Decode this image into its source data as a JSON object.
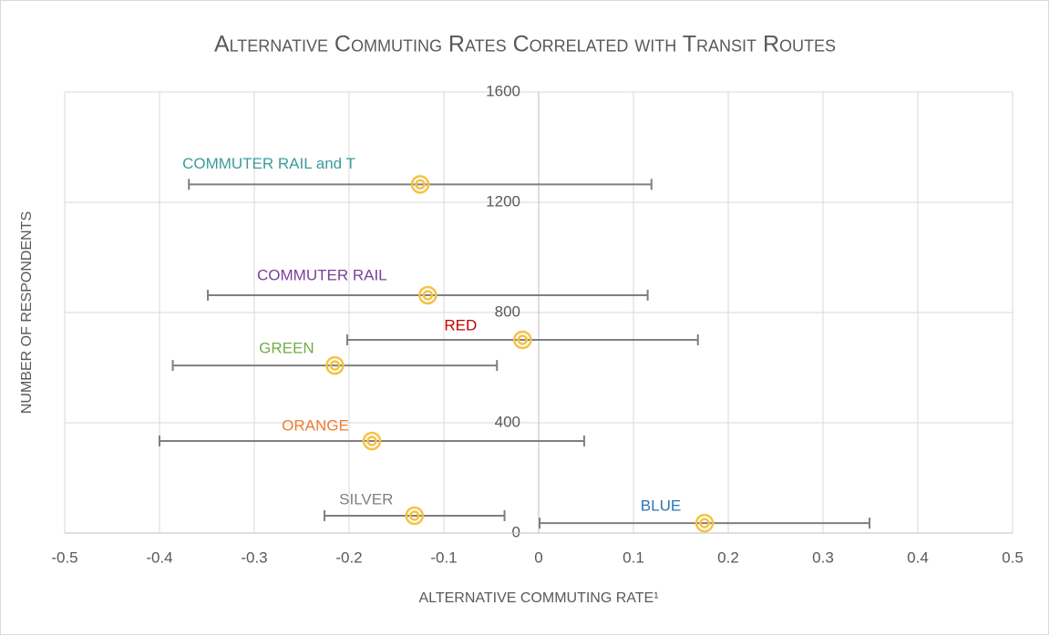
{
  "chart_data": {
    "type": "scatter",
    "title": "Alternative Commuting Rates Correlated with Transit Routes",
    "x_label": "ALTERNATIVE COMMUTING RATE¹",
    "y_label": "NUMBER OF RESPONDENTS",
    "xlim": [
      -0.5,
      0.5
    ],
    "xticks": [
      -0.5,
      -0.4,
      -0.3,
      -0.2,
      -0.1,
      0,
      0.1,
      0.2,
      0.3,
      0.4,
      0.5
    ],
    "ylim": [
      0,
      1600
    ],
    "yticks": [
      0,
      400,
      800,
      1200,
      1600
    ],
    "grid": true,
    "marker_color": "#f5c242",
    "series": [
      {
        "name": "COMMUTER RAIL and T",
        "color": "#3b9b9b",
        "x": -0.125,
        "y": 1265,
        "xerr": 0.244
      },
      {
        "name": "COMMUTER RAIL",
        "color": "#7b3f9a",
        "x": -0.117,
        "y": 863,
        "xerr": 0.232
      },
      {
        "name": "RED",
        "color": "#c00000",
        "x": -0.017,
        "y": 701,
        "xerr": 0.185
      },
      {
        "name": "GREEN",
        "color": "#70ad47",
        "x": -0.215,
        "y": 608,
        "xerr": 0.171
      },
      {
        "name": "ORANGE",
        "color": "#ed7d31",
        "x": -0.176,
        "y": 334,
        "xerr": 0.224
      },
      {
        "name": "SILVER",
        "color": "#808080",
        "x": -0.131,
        "y": 63,
        "xerr": 0.095
      },
      {
        "name": "BLUE",
        "color": "#2e75b6",
        "x": 0.175,
        "y": 36,
        "xerr": 0.174
      }
    ]
  }
}
